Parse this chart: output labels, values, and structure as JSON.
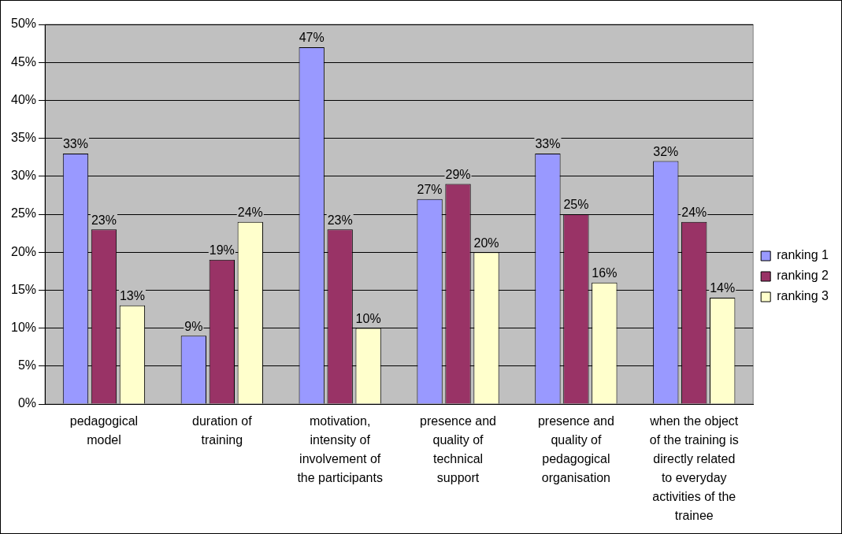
{
  "chart_data": {
    "type": "bar",
    "categories": [
      "pedagogical model",
      "duration of training",
      "motivation, intensity of involvement of the participants",
      "presence and quality of technical support",
      "presence and quality of pedagogical organisation",
      "when the object of the training is directly related to everyday activities of the trainee"
    ],
    "series": [
      {
        "name": "ranking 1",
        "color": "#9999ff",
        "values": [
          33,
          9,
          47,
          27,
          33,
          32
        ],
        "value_labels": [
          "33%",
          "9%",
          "47%",
          "27%",
          "33%",
          "32%"
        ]
      },
      {
        "name": "ranking 2",
        "color": "#993366",
        "values": [
          23,
          19,
          23,
          29,
          25,
          24
        ],
        "value_labels": [
          "23%",
          "19%",
          "23%",
          "29%",
          "25%",
          "24%"
        ]
      },
      {
        "name": "ranking 3",
        "color": "#ffffcc",
        "values": [
          13,
          24,
          10,
          20,
          16,
          14
        ],
        "value_labels": [
          "13%",
          "24%",
          "10%",
          "20%",
          "16%",
          "14%"
        ]
      }
    ],
    "ylim": [
      0,
      50
    ],
    "yticks": [
      {
        "value": 0,
        "label": "0%"
      },
      {
        "value": 5,
        "label": "5%"
      },
      {
        "value": 10,
        "label": "10%"
      },
      {
        "value": 15,
        "label": "15%"
      },
      {
        "value": 20,
        "label": "20%"
      },
      {
        "value": 25,
        "label": "25%"
      },
      {
        "value": 30,
        "label": "30%"
      },
      {
        "value": 35,
        "label": "35%"
      },
      {
        "value": 40,
        "label": "40%"
      },
      {
        "value": 45,
        "label": "45%"
      },
      {
        "value": 50,
        "label": "50%"
      }
    ],
    "grid": "y",
    "legend": "right"
  }
}
